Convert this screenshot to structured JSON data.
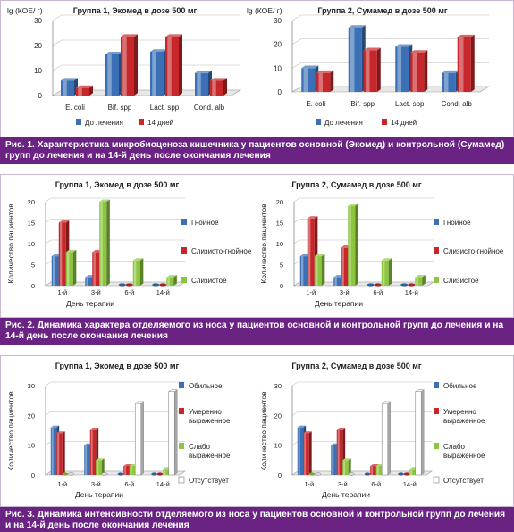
{
  "colors": {
    "blue": "#3b70b6",
    "red": "#c7262a",
    "green": "#8cc63f",
    "white": "#ffffff",
    "caption_bg": "#6a2383"
  },
  "figures": [
    {
      "caption": "Рис. 1. Характеристика микробиоценоза кишечника у пациентов основной (Экомед) и контрольной (Сумамед) групп до лечения и на 14-й день после окончания лечения",
      "ylabel": "lg (КОЕ/ г)",
      "legend": [
        "До лечения",
        "14 дней"
      ],
      "charts": [
        {
          "title": "Группа 1, Экомед в дозе 500 мг",
          "categories": [
            "E. coli",
            "Bif. spp",
            "Lact. spp",
            "Cond. alb"
          ],
          "ylim": [
            0,
            30
          ],
          "yticks": [
            0,
            10,
            20,
            30
          ],
          "series": [
            {
              "name": "До лечения",
              "values": [
                6,
                16.5,
                17.5,
                9
              ]
            },
            {
              "name": "14 дней",
              "values": [
                3,
                23.5,
                23.5,
                6
              ]
            }
          ]
        },
        {
          "title": "Группа 2, Сумамед в дозе 500 мг",
          "categories": [
            "E. coli",
            "Bif. spp",
            "Lact. spp",
            "Cond. alb"
          ],
          "ylim": [
            0,
            30
          ],
          "yticks": [
            0,
            10,
            20,
            30
          ],
          "series": [
            {
              "name": "До лечения",
              "values": [
                10,
                27,
                19,
                8
              ]
            },
            {
              "name": "14 дней",
              "values": [
                8,
                17.5,
                16.5,
                23
              ]
            }
          ]
        }
      ]
    },
    {
      "caption": "Рис. 2. Динамика характера отделяемого из носа у пациентов основной и контрольной групп до лечения и на 14-й день после окончания лечения",
      "ylabel": "Количество пациентов",
      "xlabel": "День терапии",
      "legend": [
        "Гнойное",
        "Слизисто-гнойное",
        "Слизистое"
      ],
      "charts": [
        {
          "title": "Группа 1, Экомед в дозе 500 мг",
          "categories": [
            "1-й",
            "3-й",
            "6-й",
            "14-й"
          ],
          "ylim": [
            0,
            20
          ],
          "yticks": [
            0,
            5,
            10,
            15,
            20
          ],
          "series": [
            {
              "name": "Гнойное",
              "values": [
                7,
                2,
                0,
                0
              ]
            },
            {
              "name": "Слизисто-гнойное",
              "values": [
                15,
                8,
                0,
                0
              ]
            },
            {
              "name": "Слизистое",
              "values": [
                8,
                20,
                6,
                2
              ]
            }
          ]
        },
        {
          "title": "Группа 2, Сумамед в дозе 500 мг",
          "categories": [
            "1-й",
            "3-й",
            "6-й",
            "14-й"
          ],
          "ylim": [
            0,
            20
          ],
          "yticks": [
            0,
            5,
            10,
            15,
            20
          ],
          "series": [
            {
              "name": "Гнойное",
              "values": [
                7,
                2,
                0,
                0
              ]
            },
            {
              "name": "Слизисто-гнойное",
              "values": [
                16,
                9,
                0,
                0
              ]
            },
            {
              "name": "Слизистое",
              "values": [
                7,
                19,
                6,
                2
              ]
            }
          ]
        }
      ]
    },
    {
      "caption": "Рис. 3. Динамика интенсивности отделяемого из носа у пациентов основной и контрольной групп до лечения и на 14-й день после окончания лечения",
      "ylabel": "Количество пациентов",
      "xlabel": "День терапии",
      "legend": [
        "Обильное",
        "Умеренно выраженное",
        "Слабо выраженное",
        "Отсутствует"
      ],
      "charts": [
        {
          "title": "Группа 1, Экомед в дозе 500 мг",
          "categories": [
            "1-й",
            "3-й",
            "6-й",
            "14-й"
          ],
          "ylim": [
            0,
            30
          ],
          "yticks": [
            0,
            10,
            20,
            30
          ],
          "series": [
            {
              "name": "Обильное",
              "values": [
                16,
                10,
                0,
                0
              ]
            },
            {
              "name": "Умеренно выраженное",
              "values": [
                14,
                15,
                3,
                0
              ]
            },
            {
              "name": "Слабо выраженное",
              "values": [
                0,
                5,
                3,
                2
              ]
            },
            {
              "name": "Отсутствует",
              "values": [
                0,
                0,
                24,
                28
              ]
            }
          ]
        },
        {
          "title": "Группа 2, Сумамед в дозе 500 мг",
          "categories": [
            "1-й",
            "3-й",
            "6-й",
            "14-й"
          ],
          "ylim": [
            0,
            30
          ],
          "yticks": [
            0,
            10,
            20,
            30
          ],
          "series": [
            {
              "name": "Обильное",
              "values": [
                16,
                10,
                0,
                0
              ]
            },
            {
              "name": "Умеренно выраженное",
              "values": [
                14,
                15,
                3,
                0
              ]
            },
            {
              "name": "Слабо выраженное",
              "values": [
                0,
                5,
                3,
                2
              ]
            },
            {
              "name": "Отсутствует",
              "values": [
                0,
                0,
                24,
                28
              ]
            }
          ]
        }
      ]
    }
  ],
  "chart_data": [
    {
      "type": "bar",
      "title": "Группа 1, Экомед в дозе 500 мг",
      "ylabel": "lg (КОЕ/ г)",
      "categories": [
        "E. coli",
        "Bif. spp",
        "Lact. spp",
        "Cond. alb"
      ],
      "ylim": [
        0,
        30
      ],
      "series": [
        {
          "name": "До лечения",
          "values": [
            6,
            16.5,
            17.5,
            9
          ]
        },
        {
          "name": "14 дней",
          "values": [
            3,
            23.5,
            23.5,
            6
          ]
        }
      ]
    },
    {
      "type": "bar",
      "title": "Группа 2, Сумамед в дозе 500 мг",
      "ylabel": "lg (КОЕ/ г)",
      "categories": [
        "E. coli",
        "Bif. spp",
        "Lact. spp",
        "Cond. alb"
      ],
      "ylim": [
        0,
        30
      ],
      "series": [
        {
          "name": "До лечения",
          "values": [
            10,
            27,
            19,
            8
          ]
        },
        {
          "name": "14 дней",
          "values": [
            8,
            17.5,
            16.5,
            23
          ]
        }
      ]
    },
    {
      "type": "bar",
      "title": "Группа 1, Экомед в дозе 500 мг",
      "xlabel": "День терапии",
      "ylabel": "Количество пациентов",
      "categories": [
        "1-й",
        "3-й",
        "6-й",
        "14-й"
      ],
      "ylim": [
        0,
        20
      ],
      "series": [
        {
          "name": "Гнойное",
          "values": [
            7,
            2,
            0,
            0
          ]
        },
        {
          "name": "Слизисто-гнойное",
          "values": [
            15,
            8,
            0,
            0
          ]
        },
        {
          "name": "Слизистое",
          "values": [
            8,
            20,
            6,
            2
          ]
        }
      ]
    },
    {
      "type": "bar",
      "title": "Группа 2, Сумамед в дозе 500 мг",
      "xlabel": "День терапии",
      "ylabel": "Количество пациентов",
      "categories": [
        "1-й",
        "3-й",
        "6-й",
        "14-й"
      ],
      "ylim": [
        0,
        20
      ],
      "series": [
        {
          "name": "Гнойное",
          "values": [
            7,
            2,
            0,
            0
          ]
        },
        {
          "name": "Слизисто-гнойное",
          "values": [
            16,
            9,
            0,
            0
          ]
        },
        {
          "name": "Слизистое",
          "values": [
            7,
            19,
            6,
            2
          ]
        }
      ]
    },
    {
      "type": "bar",
      "title": "Группа 1, Экомед в дозе 500 мг",
      "xlabel": "День терапии",
      "ylabel": "Количество пациентов",
      "categories": [
        "1-й",
        "3-й",
        "6-й",
        "14-й"
      ],
      "ylim": [
        0,
        30
      ],
      "series": [
        {
          "name": "Обильное",
          "values": [
            16,
            10,
            0,
            0
          ]
        },
        {
          "name": "Умеренно выраженное",
          "values": [
            14,
            15,
            3,
            0
          ]
        },
        {
          "name": "Слабо выраженное",
          "values": [
            0,
            5,
            3,
            2
          ]
        },
        {
          "name": "Отсутствует",
          "values": [
            0,
            0,
            24,
            28
          ]
        }
      ]
    },
    {
      "type": "bar",
      "title": "Группа 2, Сумамед в дозе 500 мг",
      "xlabel": "День терапии",
      "ylabel": "Количество пациентов",
      "categories": [
        "1-й",
        "3-й",
        "6-й",
        "14-й"
      ],
      "ylim": [
        0,
        30
      ],
      "series": [
        {
          "name": "Обильное",
          "values": [
            16,
            10,
            0,
            0
          ]
        },
        {
          "name": "Умеренно выраженное",
          "values": [
            14,
            15,
            3,
            0
          ]
        },
        {
          "name": "Слабо выраженное",
          "values": [
            0,
            5,
            3,
            2
          ]
        },
        {
          "name": "Отсутствует",
          "values": [
            0,
            0,
            24,
            28
          ]
        }
      ]
    }
  ]
}
